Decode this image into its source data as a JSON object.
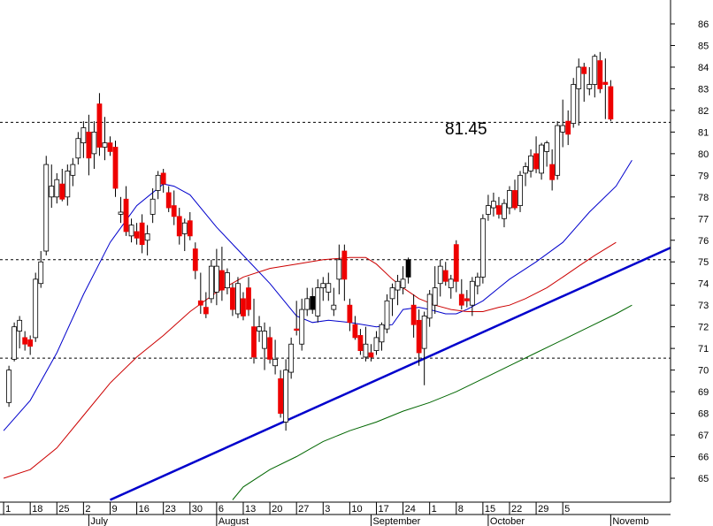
{
  "chart_data": {
    "type": "candlestick",
    "title": "",
    "xlabel": "",
    "ylabel": "",
    "ylim": [
      64,
      87
    ],
    "grid": false,
    "y_ticks": [
      65,
      66,
      67,
      68,
      69,
      70,
      71,
      72,
      73,
      74,
      75,
      76,
      77,
      78,
      79,
      80,
      81,
      82,
      83,
      84,
      85,
      86
    ],
    "x_day_ticks": [
      "1",
      "18",
      "25",
      "2",
      "9",
      "16",
      "23",
      "30",
      "6",
      "13",
      "20",
      "27",
      "3",
      "10",
      "17",
      "24",
      "1",
      "8",
      "15",
      "22",
      "29",
      "5"
    ],
    "x_month_labels": [
      "July",
      "August",
      "September",
      "October",
      "Novemb"
    ],
    "annotation": "81.45",
    "reference_levels": [
      81.45,
      75.1,
      70.55
    ],
    "trendline": {
      "start": {
        "bar": 19,
        "value": 64
      },
      "end": {
        "bar": 126,
        "value": 75.85
      }
    },
    "candles": [
      [
        68.5,
        70.2,
        68.3,
        70.0,
        "h"
      ],
      [
        70.5,
        72.2,
        70.4,
        72.0,
        "h"
      ],
      [
        71.8,
        72.5,
        71.0,
        72.3,
        "h"
      ],
      [
        71.5,
        71.8,
        70.9,
        71.2,
        "f"
      ],
      [
        71.1,
        71.6,
        70.7,
        71.4,
        "f"
      ],
      [
        71.5,
        74.5,
        71.3,
        74.2,
        "h"
      ],
      [
        74.0,
        75.5,
        73.8,
        75.0,
        "h"
      ],
      [
        75.5,
        79.9,
        75.3,
        79.5,
        "h"
      ],
      [
        78.5,
        79.5,
        77.5,
        78.0,
        "h"
      ],
      [
        78.0,
        79.1,
        77.7,
        78.8,
        "h"
      ],
      [
        78.6,
        79.3,
        77.8,
        77.9,
        "f"
      ],
      [
        78.0,
        79.5,
        77.6,
        79.2,
        "h"
      ],
      [
        79.0,
        79.8,
        78.5,
        79.5,
        "h"
      ],
      [
        79.8,
        81.0,
        79.5,
        80.7,
        "h"
      ],
      [
        80.5,
        81.5,
        79.8,
        81.2,
        "h"
      ],
      [
        81.0,
        81.8,
        79.0,
        79.8,
        "f"
      ],
      [
        80.0,
        81.5,
        79.3,
        81.0,
        "h"
      ],
      [
        82.3,
        82.8,
        79.9,
        80.3,
        "f"
      ],
      [
        80.3,
        81.7,
        79.7,
        80.5,
        "h"
      ],
      [
        80.5,
        80.8,
        79.9,
        80.1,
        "f"
      ],
      [
        80.3,
        80.6,
        78.0,
        78.4,
        "f"
      ],
      [
        77.3,
        78.0,
        76.8,
        77.2,
        "h"
      ],
      [
        77.9,
        78.5,
        76.2,
        76.4,
        "f"
      ],
      [
        76.2,
        77.0,
        75.9,
        76.7,
        "h"
      ],
      [
        76.4,
        76.8,
        75.8,
        76.1,
        "f"
      ],
      [
        76.8,
        77.2,
        75.4,
        75.8,
        "f"
      ],
      [
        76.0,
        76.7,
        75.3,
        76.3,
        "h"
      ],
      [
        77.2,
        78.4,
        76.8,
        77.9,
        "h"
      ],
      [
        78.3,
        79.2,
        77.9,
        79.0,
        "h"
      ],
      [
        79.1,
        79.3,
        78.2,
        78.6,
        "f"
      ],
      [
        78.2,
        78.5,
        77.3,
        77.5,
        "f"
      ],
      [
        77.6,
        78.3,
        76.7,
        77.1,
        "f"
      ],
      [
        77.1,
        77.5,
        75.8,
        76.2,
        "f"
      ],
      [
        76.3,
        77.0,
        75.5,
        76.8,
        "h"
      ],
      [
        76.9,
        77.3,
        76.0,
        76.2,
        "f"
      ],
      [
        75.6,
        75.9,
        74.2,
        74.6,
        "f"
      ],
      [
        73.2,
        74.5,
        72.6,
        73.0,
        "f"
      ],
      [
        72.9,
        73.6,
        72.4,
        72.6,
        "f"
      ],
      [
        73.3,
        75.1,
        73.1,
        74.8,
        "h"
      ],
      [
        74.8,
        75.6,
        73.0,
        73.6,
        "h"
      ],
      [
        73.7,
        75.7,
        73.2,
        74.6,
        "f"
      ],
      [
        74.5,
        74.7,
        73.5,
        73.8,
        "h"
      ],
      [
        73.8,
        74.0,
        72.5,
        72.8,
        "f"
      ],
      [
        72.6,
        74.3,
        72.4,
        74.0,
        "h"
      ],
      [
        73.3,
        73.6,
        72.3,
        72.5,
        "f"
      ],
      [
        73.8,
        74.3,
        72.5,
        72.8,
        "f"
      ],
      [
        72.0,
        73.3,
        70.3,
        70.6,
        "f"
      ],
      [
        71.8,
        72.5,
        71.3,
        72.0,
        "h"
      ],
      [
        71.8,
        72.2,
        70.0,
        71.0,
        "h"
      ],
      [
        71.5,
        72.0,
        70.3,
        70.5,
        "f"
      ],
      [
        70.2,
        71.4,
        69.8,
        70.5,
        "h"
      ],
      [
        69.6,
        70.0,
        67.8,
        68.0,
        "f"
      ],
      [
        67.6,
        70.5,
        67.2,
        70.0,
        "h"
      ],
      [
        69.9,
        71.5,
        69.6,
        71.2,
        "h"
      ],
      [
        71.9,
        73.2,
        71.6,
        71.9,
        "f"
      ],
      [
        71.2,
        73.3,
        70.9,
        72.8,
        "h"
      ],
      [
        72.8,
        73.8,
        72.5,
        73.3,
        "h"
      ],
      [
        73.4,
        73.8,
        72.6,
        72.8,
        "s"
      ],
      [
        72.5,
        74.2,
        72.2,
        73.8,
        "h"
      ],
      [
        73.8,
        74.3,
        73.2,
        74.0,
        "h"
      ],
      [
        74.0,
        74.5,
        73.2,
        73.6,
        "h"
      ],
      [
        73.0,
        73.8,
        72.5,
        72.8,
        "h"
      ],
      [
        74.2,
        75.8,
        73.5,
        75.1,
        "h"
      ],
      [
        75.5,
        75.8,
        73.2,
        74.2,
        "f"
      ],
      [
        73.0,
        73.3,
        71.8,
        72.2,
        "f"
      ],
      [
        72.1,
        72.5,
        71.4,
        71.5,
        "f"
      ],
      [
        71.6,
        71.9,
        70.7,
        70.9,
        "f"
      ],
      [
        70.6,
        72.0,
        70.4,
        71.2,
        "h"
      ],
      [
        70.8,
        71.2,
        70.4,
        70.6,
        "f"
      ],
      [
        70.9,
        71.8,
        70.7,
        71.5,
        "h"
      ],
      [
        71.3,
        72.2,
        70.9,
        72.1,
        "h"
      ],
      [
        71.9,
        73.5,
        71.7,
        73.2,
        "h"
      ],
      [
        73.3,
        74.0,
        72.5,
        73.8,
        "h"
      ],
      [
        73.7,
        74.4,
        73.0,
        74.1,
        "h"
      ],
      [
        74.2,
        74.8,
        73.5,
        73.8,
        "h"
      ],
      [
        74.3,
        75.2,
        74.0,
        75.1,
        "s"
      ],
      [
        73.0,
        73.5,
        71.5,
        72.1,
        "f"
      ],
      [
        72.3,
        72.8,
        70.2,
        70.8,
        "f"
      ],
      [
        71.0,
        72.7,
        69.3,
        72.5,
        "h"
      ],
      [
        72.4,
        73.7,
        72.0,
        73.5,
        "h"
      ],
      [
        73.0,
        74.8,
        72.6,
        73.8,
        "h"
      ],
      [
        74.0,
        75.1,
        73.4,
        74.8,
        "h"
      ],
      [
        74.6,
        75.0,
        73.9,
        74.1,
        "f"
      ],
      [
        73.8,
        74.4,
        73.3,
        74.2,
        "h"
      ],
      [
        75.8,
        76.0,
        73.6,
        74.1,
        "f"
      ],
      [
        73.5,
        74.2,
        72.8,
        73.0,
        "f"
      ],
      [
        73.3,
        73.7,
        72.9,
        73.2,
        "f"
      ],
      [
        73.0,
        74.3,
        72.5,
        74.1,
        "h"
      ],
      [
        73.9,
        74.5,
        73.5,
        74.3,
        "h"
      ],
      [
        74.3,
        77.2,
        74.0,
        77.0,
        "h"
      ],
      [
        77.2,
        78.1,
        76.9,
        77.6,
        "h"
      ],
      [
        77.5,
        78.2,
        77.1,
        77.8,
        "h"
      ],
      [
        77.6,
        78.0,
        77.0,
        77.2,
        "f"
      ],
      [
        77.0,
        77.9,
        76.6,
        77.7,
        "h"
      ],
      [
        77.5,
        78.5,
        77.2,
        78.3,
        "h"
      ],
      [
        78.3,
        78.8,
        77.4,
        77.5,
        "f"
      ],
      [
        77.6,
        79.2,
        77.3,
        79.0,
        "h"
      ],
      [
        79.1,
        79.6,
        78.5,
        79.4,
        "h"
      ],
      [
        79.2,
        80.2,
        78.9,
        79.9,
        "h"
      ],
      [
        80.0,
        80.8,
        79.1,
        79.3,
        "f"
      ],
      [
        79.1,
        80.5,
        78.8,
        80.4,
        "h"
      ],
      [
        80.1,
        80.6,
        79.4,
        80.5,
        "h"
      ],
      [
        79.5,
        80.2,
        78.3,
        78.8,
        "f"
      ],
      [
        79.0,
        81.5,
        78.8,
        81.3,
        "h"
      ],
      [
        81.0,
        82.5,
        80.3,
        81.3,
        "h"
      ],
      [
        81.5,
        82.0,
        80.4,
        80.9,
        "f"
      ],
      [
        81.4,
        83.5,
        81.2,
        83.2,
        "h"
      ],
      [
        83.0,
        84.4,
        81.3,
        84.0,
        "h"
      ],
      [
        84.0,
        84.2,
        82.4,
        83.7,
        "f"
      ],
      [
        83.2,
        84.0,
        82.7,
        83.0,
        "h"
      ],
      [
        83.2,
        84.6,
        82.6,
        84.5,
        "h"
      ],
      [
        84.3,
        84.7,
        82.8,
        83.0,
        "f"
      ],
      [
        83.3,
        84.4,
        81.6,
        83.2,
        "f"
      ],
      [
        83.1,
        83.4,
        81.5,
        81.6,
        "f"
      ]
    ],
    "series": [
      {
        "name": "",
        "color": "#0000cc",
        "width": 1,
        "points": [
          [
            -1,
            67.2
          ],
          [
            4,
            68.6
          ],
          [
            9,
            70.8
          ],
          [
            14,
            73.5
          ],
          [
            19,
            75.9
          ],
          [
            24,
            77.6
          ],
          [
            29,
            78.6
          ],
          [
            31,
            78.5
          ],
          [
            34,
            78.1
          ],
          [
            39,
            76.6
          ],
          [
            44,
            75.3
          ],
          [
            49,
            74.0
          ],
          [
            54,
            72.5
          ],
          [
            57,
            72.2
          ],
          [
            60,
            72.3
          ],
          [
            64,
            72.2
          ],
          [
            69,
            72.0
          ],
          [
            72,
            72.1
          ],
          [
            74,
            72.8
          ],
          [
            77,
            72.9
          ],
          [
            79,
            72.8
          ],
          [
            82,
            72.6
          ],
          [
            84,
            72.6
          ],
          [
            86,
            72.8
          ],
          [
            89,
            73.2
          ],
          [
            92,
            73.8
          ],
          [
            94,
            74.2
          ],
          [
            99,
            75.0
          ],
          [
            104,
            75.9
          ],
          [
            109,
            77.3
          ],
          [
            114,
            78.5
          ],
          [
            117,
            79.7
          ]
        ]
      },
      {
        "name": "",
        "color": "#cc0000",
        "width": 1,
        "points": [
          [
            -1,
            65.0
          ],
          [
            4,
            65.4
          ],
          [
            9,
            66.4
          ],
          [
            14,
            67.9
          ],
          [
            19,
            69.4
          ],
          [
            24,
            70.6
          ],
          [
            29,
            71.6
          ],
          [
            34,
            72.7
          ],
          [
            39,
            73.6
          ],
          [
            44,
            74.3
          ],
          [
            49,
            74.7
          ],
          [
            54,
            74.9
          ],
          [
            59,
            75.1
          ],
          [
            64,
            75.2
          ],
          [
            67,
            75.2
          ],
          [
            69,
            74.9
          ],
          [
            72,
            74.2
          ],
          [
            74,
            73.8
          ],
          [
            77,
            73.3
          ],
          [
            80,
            73.0
          ],
          [
            83,
            72.8
          ],
          [
            86,
            72.7
          ],
          [
            89,
            72.7
          ],
          [
            92,
            72.9
          ],
          [
            94,
            73.0
          ],
          [
            97,
            73.3
          ],
          [
            101,
            73.8
          ],
          [
            104,
            74.3
          ],
          [
            107,
            74.8
          ],
          [
            110,
            75.3
          ],
          [
            114,
            75.9
          ]
        ]
      },
      {
        "name": "",
        "color": "#006600",
        "width": 1,
        "points": [
          [
            42,
            64.0
          ],
          [
            44,
            64.6
          ],
          [
            49,
            65.4
          ],
          [
            54,
            66.0
          ],
          [
            59,
            66.7
          ],
          [
            64,
            67.2
          ],
          [
            69,
            67.6
          ],
          [
            74,
            68.1
          ],
          [
            79,
            68.5
          ],
          [
            84,
            69.0
          ],
          [
            89,
            69.6
          ],
          [
            94,
            70.2
          ],
          [
            99,
            70.8
          ],
          [
            104,
            71.4
          ],
          [
            109,
            72.0
          ],
          [
            114,
            72.6
          ],
          [
            117,
            73.0
          ]
        ]
      }
    ]
  }
}
